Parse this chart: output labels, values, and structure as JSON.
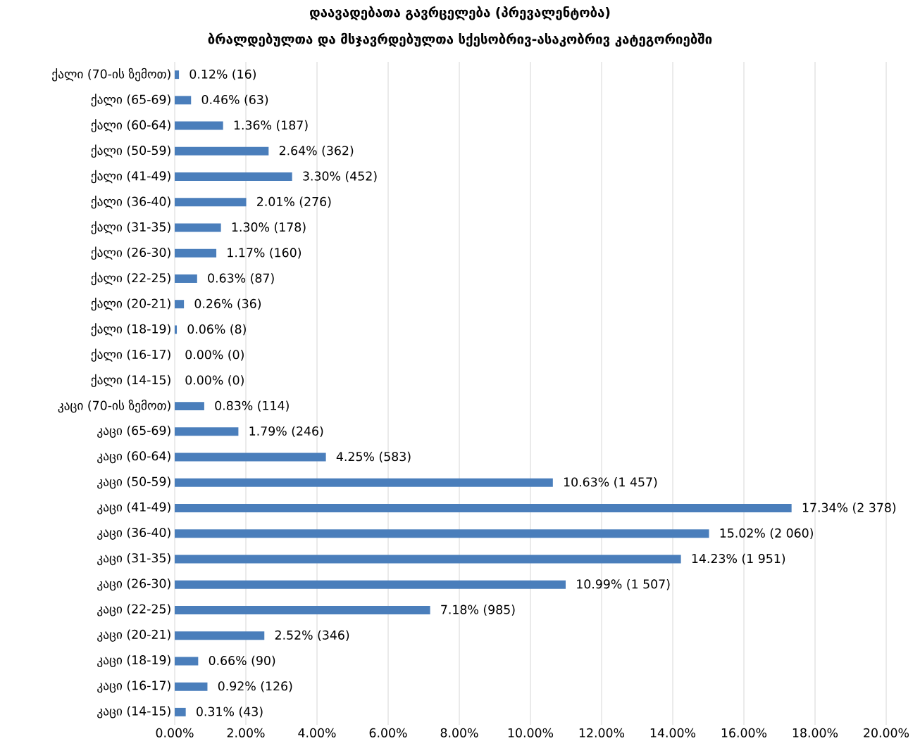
{
  "chart_data": {
    "type": "bar",
    "orientation": "horizontal",
    "title": "დაავადებათა გავრცელება (პრევალენტობა)",
    "subtitle": "ბრალდებულთა და მსჯავრდებულთა სქესობრივ-ასაკობრივ კატეგორიებში",
    "categories": [
      "ქალი (70-ის ზემოთ)",
      "ქალი (65-69)",
      "ქალი (60-64)",
      "ქალი (50-59)",
      "ქალი (41-49)",
      "ქალი (36-40)",
      "ქალი (31-35)",
      "ქალი (26-30)",
      "ქალი (22-25)",
      "ქალი (20-21)",
      "ქალი (18-19)",
      "ქალი (16-17)",
      "ქალი (14-15)",
      "კაცი (70-ის ზემოთ)",
      "კაცი (65-69)",
      "კაცი (60-64)",
      "კაცი (50-59)",
      "კაცი (41-49)",
      "კაცი (36-40)",
      "კაცი (31-35)",
      "კაცი (26-30)",
      "კაცი (22-25)",
      "კაცი (20-21)",
      "კაცი (18-19)",
      "კაცი (16-17)",
      "კაცი (14-15)"
    ],
    "values": [
      0.12,
      0.46,
      1.36,
      2.64,
      3.3,
      2.01,
      1.3,
      1.17,
      0.63,
      0.26,
      0.06,
      0.0,
      0.0,
      0.83,
      1.79,
      4.25,
      10.63,
      17.34,
      15.02,
      14.23,
      10.99,
      7.18,
      2.52,
      0.66,
      0.92,
      0.31
    ],
    "value_labels": [
      "0.12% (16)",
      "0.46% (63)",
      "1.36% (187)",
      "2.64% (362)",
      "3.30% (452)",
      "2.01% (276)",
      "1.30% (178)",
      "1.17% (160)",
      "0.63% (87)",
      "0.26% (36)",
      "0.06% (8)",
      "0.00% (0)",
      "0.00% (0)",
      "0.83% (114)",
      "1.79% (246)",
      "4.25% (583)",
      "10.63% (1 457)",
      "17.34% (2 378)",
      "15.02% (2 060)",
      "14.23% (1 951)",
      "10.99% (1 507)",
      "7.18% (985)",
      "2.52% (346)",
      "0.66% (90)",
      "0.92% (126)",
      "0.31% (43)"
    ],
    "color": "#4a7ebb",
    "xlim": [
      0,
      20
    ],
    "xticks": [
      {
        "value": 0,
        "label": "0.00%"
      },
      {
        "value": 2,
        "label": "2.00%"
      },
      {
        "value": 4,
        "label": "4.00%"
      },
      {
        "value": 6,
        "label": "6.00%"
      },
      {
        "value": 8,
        "label": "8.00%"
      },
      {
        "value": 10,
        "label": "10.00%"
      },
      {
        "value": 12,
        "label": "12.00%"
      },
      {
        "value": 14,
        "label": "14.00%"
      },
      {
        "value": 16,
        "label": "16.00%"
      },
      {
        "value": 18,
        "label": "18.00%"
      },
      {
        "value": 20,
        "label": "20.00%"
      }
    ],
    "grid": "x"
  }
}
